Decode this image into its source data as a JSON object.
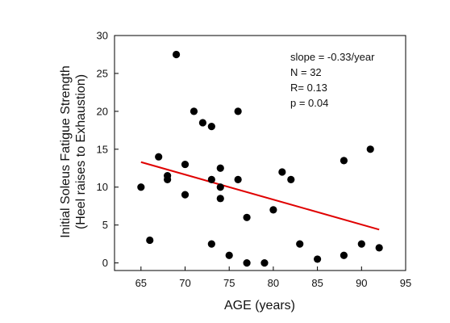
{
  "chart_data": {
    "type": "scatter",
    "title": "",
    "xlabel": "AGE (years)",
    "ylabel_lines": [
      "Initial Soleus Fatigue Strength",
      "(Heel raises to Exhaustion)"
    ],
    "xlim": [
      62,
      95
    ],
    "ylim": [
      -1,
      30
    ],
    "xticks": [
      65,
      70,
      75,
      80,
      85,
      90,
      95
    ],
    "yticks": [
      0,
      5,
      10,
      15,
      20,
      25,
      30
    ],
    "grid": false,
    "legend": "none",
    "point_color": "#000000",
    "fit_color": "#e00000",
    "points": [
      {
        "x": 65,
        "y": 10
      },
      {
        "x": 66,
        "y": 3
      },
      {
        "x": 67,
        "y": 14
      },
      {
        "x": 68,
        "y": 11.5
      },
      {
        "x": 68,
        "y": 11
      },
      {
        "x": 69,
        "y": 27.5
      },
      {
        "x": 70,
        "y": 13
      },
      {
        "x": 70,
        "y": 9
      },
      {
        "x": 71,
        "y": 20
      },
      {
        "x": 72,
        "y": 18.5
      },
      {
        "x": 73,
        "y": 18
      },
      {
        "x": 73,
        "y": 11
      },
      {
        "x": 73,
        "y": 2.5
      },
      {
        "x": 74,
        "y": 12.5
      },
      {
        "x": 74,
        "y": 10
      },
      {
        "x": 74,
        "y": 8.5
      },
      {
        "x": 75,
        "y": 1
      },
      {
        "x": 76,
        "y": 20
      },
      {
        "x": 76,
        "y": 11
      },
      {
        "x": 77,
        "y": 6
      },
      {
        "x": 77,
        "y": 0
      },
      {
        "x": 79,
        "y": 0
      },
      {
        "x": 80,
        "y": 7
      },
      {
        "x": 81,
        "y": 12
      },
      {
        "x": 82,
        "y": 11
      },
      {
        "x": 83,
        "y": 2.5
      },
      {
        "x": 85,
        "y": 0.5
      },
      {
        "x": 88,
        "y": 13.5
      },
      {
        "x": 88,
        "y": 1
      },
      {
        "x": 90,
        "y": 2.5
      },
      {
        "x": 91,
        "y": 15
      },
      {
        "x": 92,
        "y": 2
      }
    ],
    "fit_line": {
      "x": [
        65,
        92
      ],
      "y": [
        13.3,
        4.4
      ]
    },
    "annotations": [
      "slope = -0.33/year",
      "N = 32",
      "R= 0.13",
      "p = 0.04"
    ]
  }
}
